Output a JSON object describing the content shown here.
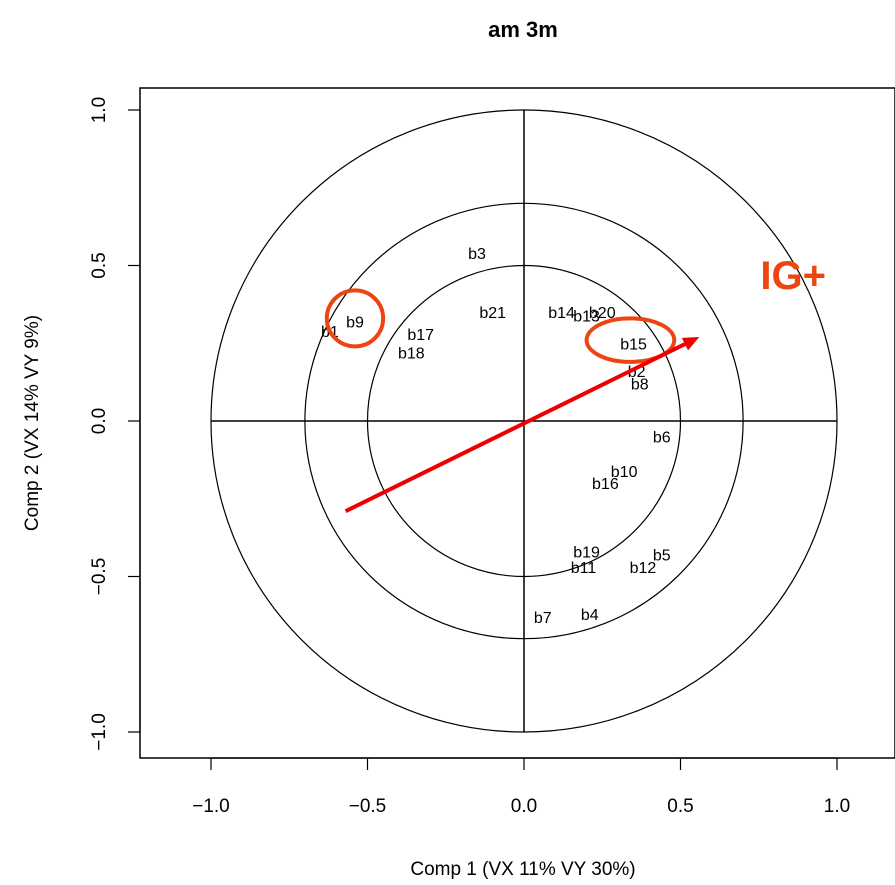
{
  "chart_data": {
    "type": "scatter",
    "title": "am 3m",
    "xlabel": "Comp 1 (VX 11%  VY 30%)",
    "ylabel": "Comp 2 (VX 14%  VY 9%)",
    "xlim": [
      -1.2,
      1.2
    ],
    "ylim": [
      -1.08,
      1.08
    ],
    "x_ticks": [
      "-1.0",
      "-0.5",
      "0.0",
      "0.5",
      "1.0"
    ],
    "y_ticks": [
      "-1.0",
      "-0.5",
      "0.0",
      "0.5",
      "1.0"
    ],
    "circle_radii": [
      0.5,
      0.7,
      1.0
    ],
    "points": [
      {
        "label": "b1",
        "x": -0.62,
        "y": 0.29
      },
      {
        "label": "b9",
        "x": -0.54,
        "y": 0.32
      },
      {
        "label": "b17",
        "x": -0.33,
        "y": 0.28
      },
      {
        "label": "b18",
        "x": -0.36,
        "y": 0.22
      },
      {
        "label": "b3",
        "x": -0.15,
        "y": 0.54
      },
      {
        "label": "b21",
        "x": -0.1,
        "y": 0.35
      },
      {
        "label": "b14",
        "x": 0.12,
        "y": 0.35
      },
      {
        "label": "b13",
        "x": 0.2,
        "y": 0.34
      },
      {
        "label": "b20",
        "x": 0.25,
        "y": 0.35
      },
      {
        "label": "b15",
        "x": 0.35,
        "y": 0.25
      },
      {
        "label": "b2",
        "x": 0.36,
        "y": 0.16
      },
      {
        "label": "b8",
        "x": 0.37,
        "y": 0.12
      },
      {
        "label": "b6",
        "x": 0.44,
        "y": -0.05
      },
      {
        "label": "b10",
        "x": 0.32,
        "y": -0.16
      },
      {
        "label": "b16",
        "x": 0.26,
        "y": -0.2
      },
      {
        "label": "b19",
        "x": 0.2,
        "y": -0.42
      },
      {
        "label": "b11",
        "x": 0.19,
        "y": -0.47
      },
      {
        "label": "b5",
        "x": 0.44,
        "y": -0.43
      },
      {
        "label": "b12",
        "x": 0.38,
        "y": -0.47
      },
      {
        "label": "b7",
        "x": 0.06,
        "y": -0.63
      },
      {
        "label": "b4",
        "x": 0.21,
        "y": -0.62
      }
    ],
    "arrow": {
      "x1": -0.57,
      "y1": -0.29,
      "x2": 0.56,
      "y2": 0.27,
      "color": "#ee0000"
    },
    "highlights": [
      {
        "target": "b9",
        "cx": -0.54,
        "cy": 0.33,
        "rx": 0.09,
        "ry": 0.09,
        "color": "#ee4411"
      },
      {
        "target": "b15",
        "cx": 0.34,
        "cy": 0.26,
        "rx": 0.14,
        "ry": 0.07,
        "color": "#ee4411"
      }
    ],
    "annotation": {
      "text": "IG+",
      "x": 0.86,
      "y": 0.47,
      "color": "#ee4411"
    },
    "grid": false,
    "legend": "none"
  }
}
